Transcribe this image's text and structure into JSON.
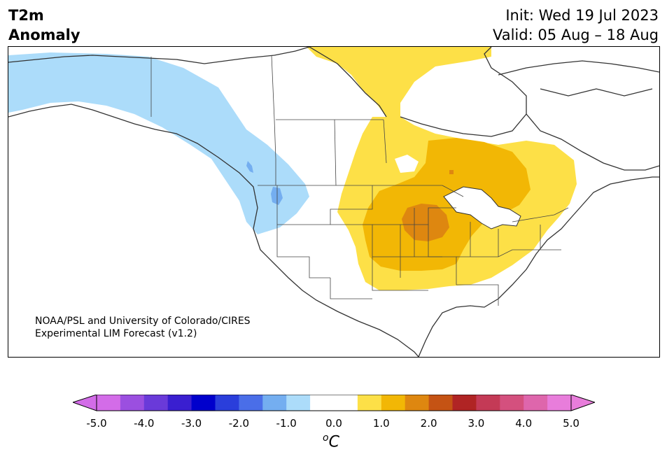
{
  "header": {
    "title_line1": "T2m",
    "title_line2": "Anomaly",
    "init_line": "Init: Wed 19 Jul 2023",
    "valid_line": "Valid: 05 Aug – 18 Aug"
  },
  "map": {
    "credit_line1": "NOAA/PSL and University of Colorado/CIRES",
    "credit_line2": "Experimental LIM Forecast (v1.2)"
  },
  "colorbar": {
    "unit_prefix": "o",
    "unit_main": "C",
    "ticks": [
      "-5.0",
      "-4.0",
      "-3.0",
      "-2.0",
      "-1.0",
      "0.0",
      "1.0",
      "2.0",
      "3.0",
      "4.0",
      "5.0"
    ],
    "colors": [
      "#d36ce8",
      "#9b4fe0",
      "#6a3ad9",
      "#3a1fd0",
      "#0000cc",
      "#2a3edb",
      "#4a6ee8",
      "#74aef0",
      "#acdcfa",
      "#ffffff",
      "#ffffff",
      "#fde047",
      "#f2b705",
      "#de8710",
      "#c55314",
      "#b02424",
      "#c43a56",
      "#d4507e",
      "#de66ac",
      "#e87ddb"
    ],
    "min_arrow_color": "#d36ce8",
    "max_arrow_color": "#e87ddb"
  }
}
